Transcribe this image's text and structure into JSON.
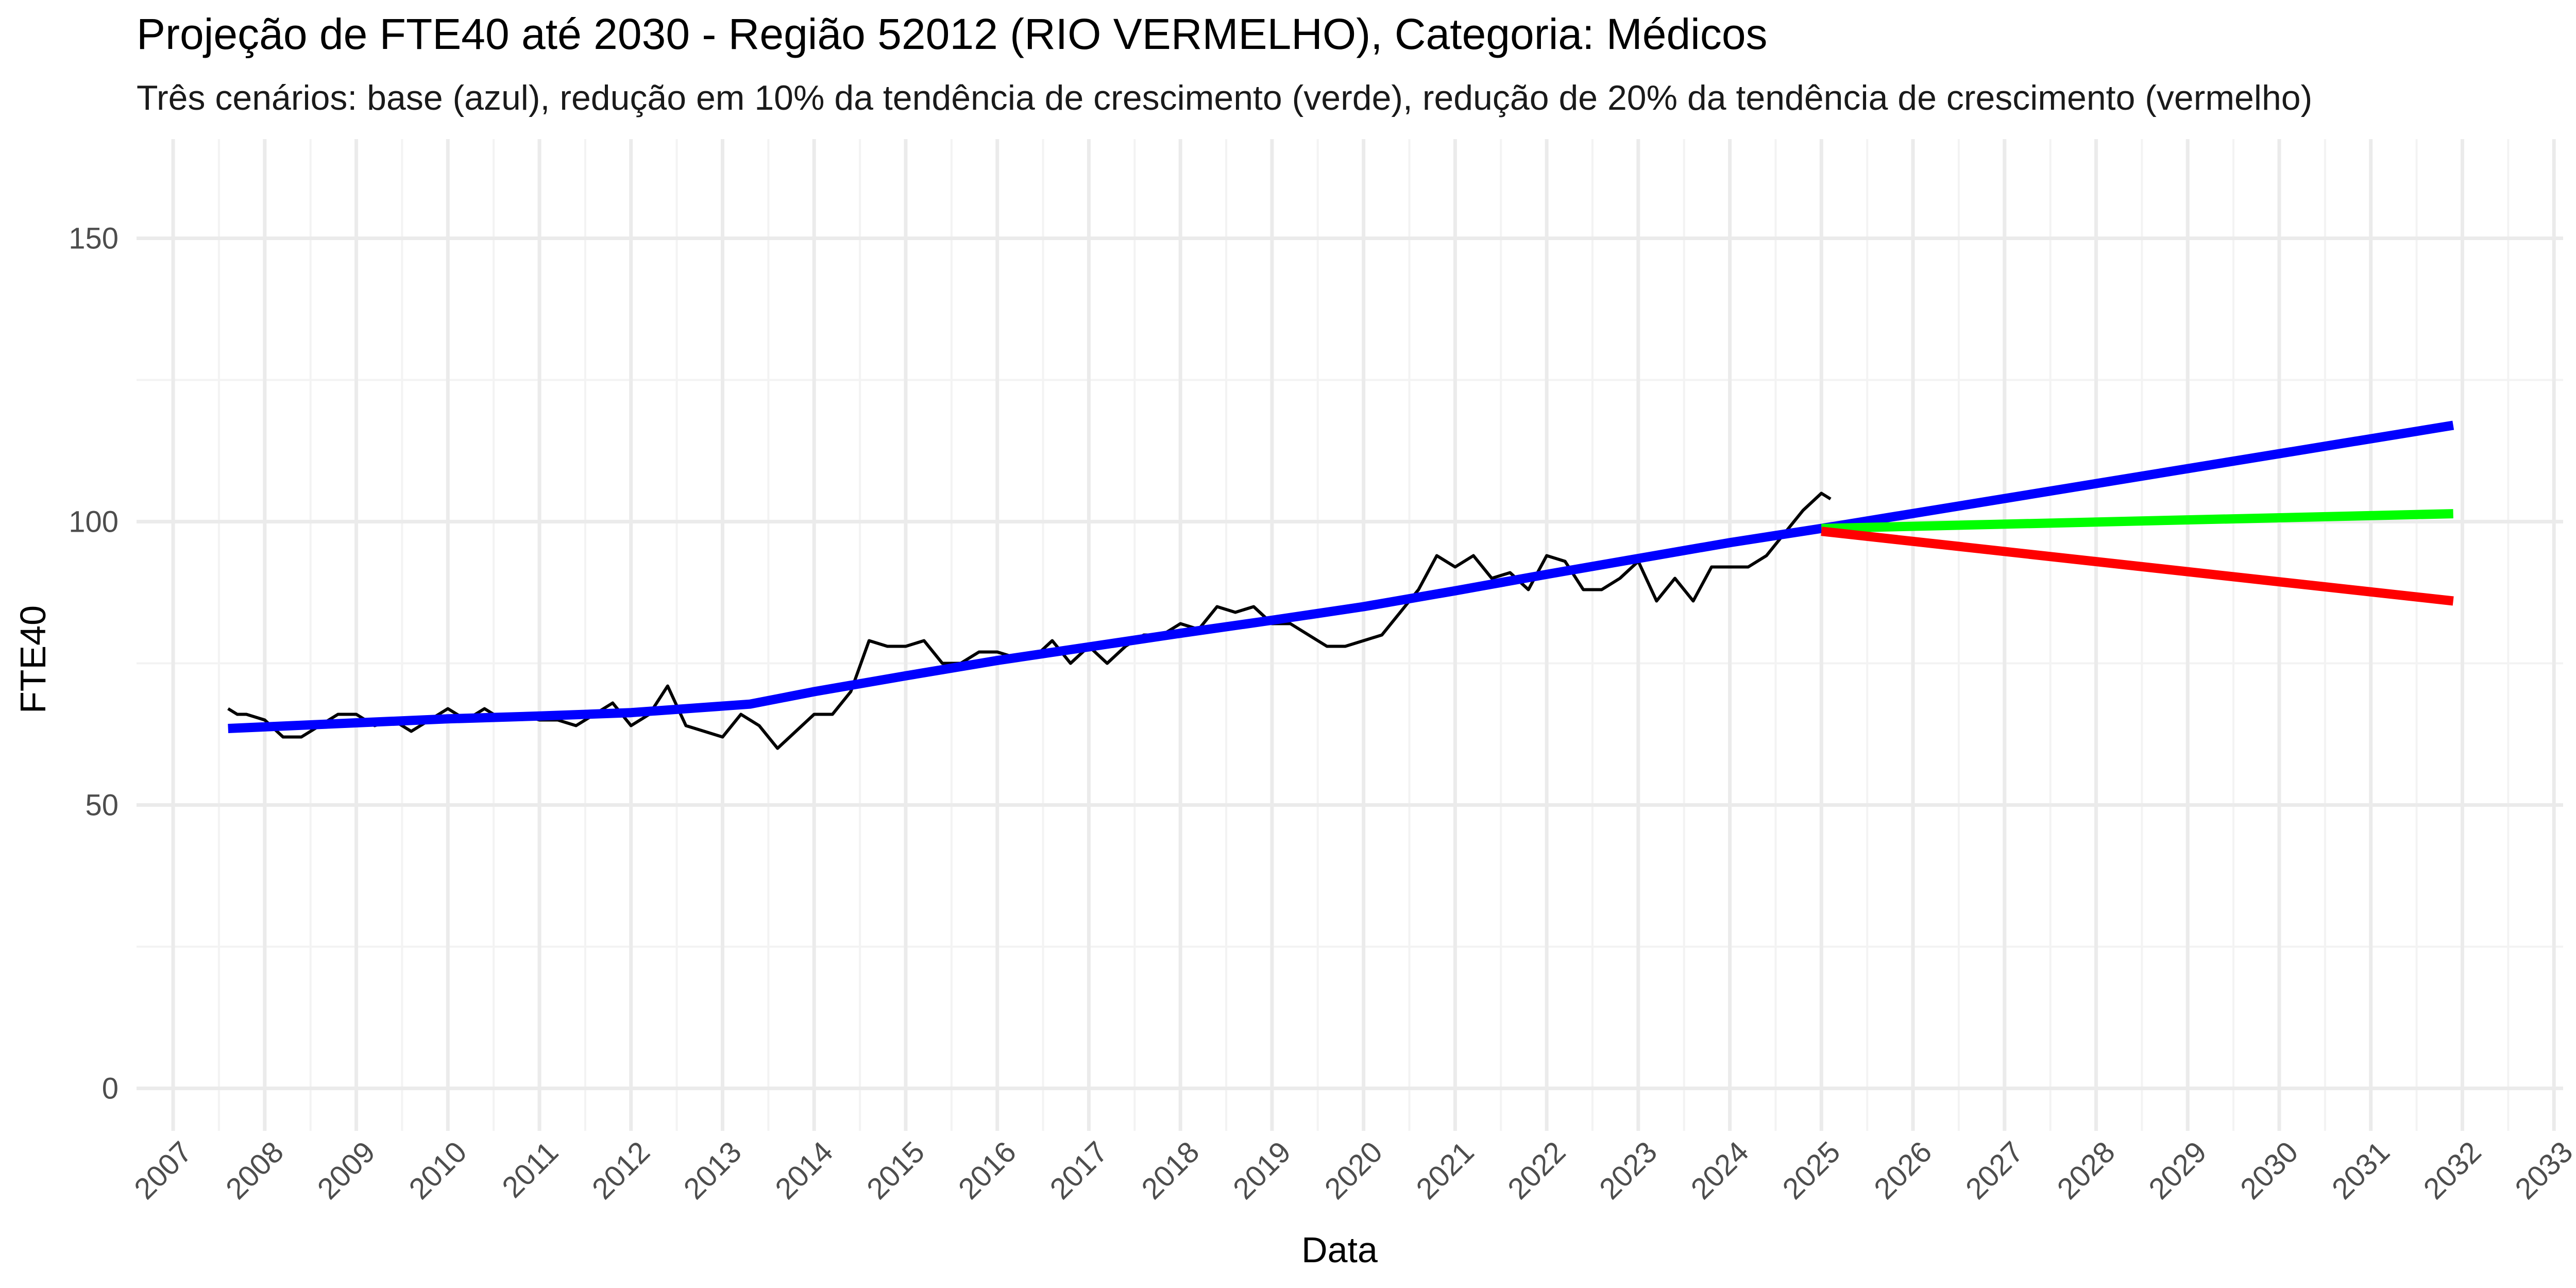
{
  "chart_data": {
    "type": "line",
    "title": "Projeção de FTE40 até 2030 - Região 52012 (RIO VERMELHO), Categoria: Médicos",
    "subtitle": "Três cenários: base (azul), redução em 10% da tendência de crescimento (verde), redução de 20% da tendência de crescimento (vermelho)",
    "xlabel": "Data",
    "ylabel": "FTE40",
    "xlim": [
      2006.6,
      2033.1
    ],
    "ylim": [
      -7.5,
      167.5
    ],
    "x_ticks": [
      "2007",
      "2008",
      "2009",
      "2010",
      "2011",
      "2012",
      "2013",
      "2014",
      "2015",
      "2016",
      "2017",
      "2018",
      "2019",
      "2020",
      "2021",
      "2022",
      "2023",
      "2024",
      "2025",
      "2026",
      "2027",
      "2028",
      "2029",
      "2030",
      "2031",
      "2032",
      "2033"
    ],
    "y_ticks": [
      0,
      50,
      100,
      150
    ],
    "grid": true,
    "legend": "none",
    "series": [
      {
        "color": "#000000",
        "x": [
          2007.6,
          2007.7,
          2007.8,
          2008.0,
          2008.2,
          2008.4,
          2008.6,
          2008.8,
          2009.0,
          2009.2,
          2009.4,
          2009.6,
          2009.8,
          2010.0,
          2010.2,
          2010.4,
          2010.6,
          2010.8,
          2011.0,
          2011.2,
          2011.4,
          2011.6,
          2011.8,
          2012.0,
          2012.2,
          2012.4,
          2012.6,
          2012.8,
          2013.0,
          2013.2,
          2013.4,
          2013.6,
          2013.8,
          2014.0,
          2014.2,
          2014.4,
          2014.6,
          2014.8,
          2015.0,
          2015.2,
          2015.4,
          2015.6,
          2015.8,
          2016.0,
          2016.2,
          2016.4,
          2016.6,
          2016.8,
          2017.0,
          2017.2,
          2017.4,
          2017.6,
          2017.8,
          2018.0,
          2018.2,
          2018.4,
          2018.6,
          2018.8,
          2019.0,
          2019.2,
          2019.4,
          2019.6,
          2019.8,
          2020.0,
          2020.2,
          2020.4,
          2020.6,
          2020.8,
          2021.0,
          2021.2,
          2021.4,
          2021.6,
          2021.8,
          2022.0,
          2022.2,
          2022.4,
          2022.6,
          2022.8,
          2023.0,
          2023.2,
          2023.4,
          2023.6,
          2023.8,
          2024.0,
          2024.2,
          2024.4,
          2024.6,
          2024.8,
          2025.0,
          2025.1
        ],
        "y": [
          67,
          66,
          66,
          65,
          62,
          62,
          64,
          66,
          66,
          64,
          65,
          63,
          65,
          67,
          65,
          67,
          65,
          66,
          65,
          65,
          64,
          66,
          68,
          64,
          66,
          71,
          64,
          63,
          62,
          66,
          64,
          60,
          63,
          66,
          66,
          70,
          79,
          78,
          78,
          79,
          75,
          75,
          77,
          77,
          76,
          76,
          79,
          75,
          78,
          75,
          78,
          80,
          80,
          82,
          81,
          85,
          84,
          85,
          82,
          82,
          80,
          78,
          78,
          79,
          80,
          84,
          88,
          94,
          92,
          94,
          90,
          91,
          88,
          94,
          93,
          88,
          88,
          90,
          93,
          86,
          90,
          86,
          92,
          92,
          92,
          94,
          98,
          102,
          105,
          104
        ]
      },
      {
        "color": "#0000ff",
        "x": [
          2007.6,
          2009.0,
          2010.0,
          2011.0,
          2012.0,
          2013.3,
          2014.0,
          2015.0,
          2016.0,
          2017.0,
          2018.0,
          2019.0,
          2020.0,
          2021.0,
          2022.0,
          2023.0,
          2024.0,
          2025.0,
          2031.9
        ],
        "y": [
          63.5,
          64.5,
          65.2,
          65.7,
          66.3,
          67.8,
          70.0,
          72.8,
          75.5,
          77.9,
          80.3,
          82.6,
          85.0,
          87.8,
          90.7,
          93.5,
          96.3,
          98.8,
          117.0
        ]
      },
      {
        "color": "#00ff00",
        "x": [
          2025.0,
          2031.9
        ],
        "y": [
          98.8,
          101.4
        ]
      },
      {
        "color": "#ff0000",
        "x": [
          2025.0,
          2031.9
        ],
        "y": [
          98.3,
          86.0
        ]
      }
    ]
  }
}
